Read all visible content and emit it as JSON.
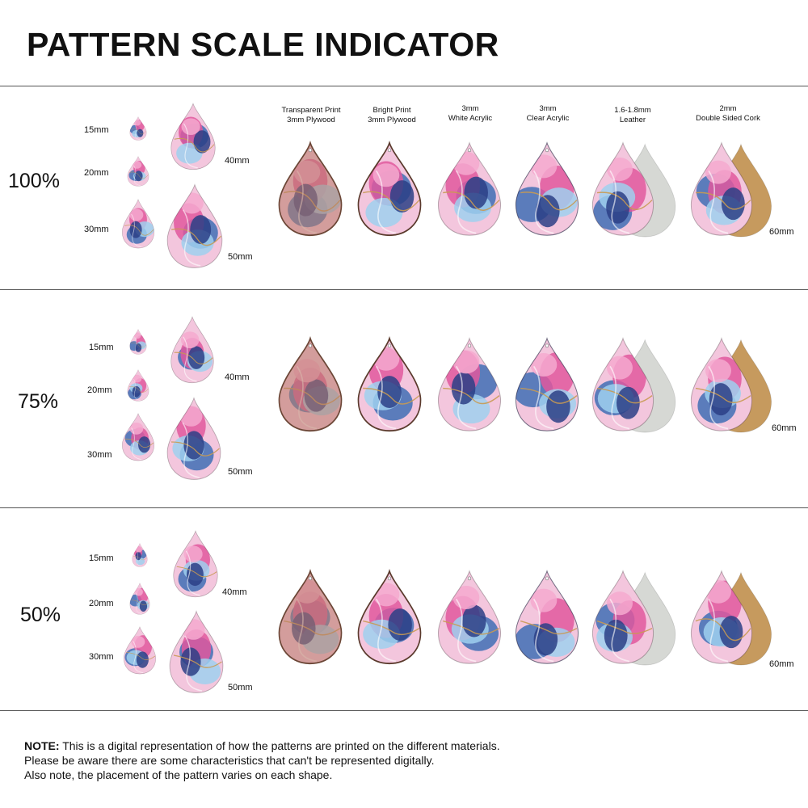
{
  "title": "PATTERN SCALE INDICATOR",
  "columns": [
    {
      "line1": "Transparent Print",
      "line2": "3mm Plywood"
    },
    {
      "line1": "Bright Print",
      "line2": "3mm Plywood"
    },
    {
      "line1": "3mm",
      "line2": "White Acrylic"
    },
    {
      "line1": "3mm",
      "line2": "Clear Acrylic"
    },
    {
      "line1": "1.6-1.8mm",
      "line2": "Leather"
    },
    {
      "line1": "2mm",
      "line2": "Double Sided Cork"
    }
  ],
  "sections": [
    {
      "scale": "100%",
      "sizes": [
        "15mm",
        "20mm",
        "30mm",
        "40mm",
        "50mm"
      ],
      "large_size": "60mm"
    },
    {
      "scale": "75%",
      "sizes": [
        "15mm",
        "20mm",
        "30mm",
        "40mm",
        "50mm"
      ],
      "large_size": "60mm"
    },
    {
      "scale": "50%",
      "sizes": [
        "15mm",
        "20mm",
        "30mm",
        "40mm",
        "50mm"
      ],
      "large_size": "60mm"
    }
  ],
  "note": {
    "label": "NOTE:",
    "line1": "This is a digital representation of how the patterns are printed on the different materials.",
    "line2": "Please be aware there are some characteristics that can't be represented digitally.",
    "line3": "Also note, the placement of the pattern varies on each shape."
  },
  "colors": {
    "pink": "#e0589e",
    "blue": "#3f6fb5",
    "light_blue": "#9fd0ee",
    "navy": "#2c3f86",
    "gold": "#c89a52",
    "leather": "#d6d8d4",
    "cork": "#c69a5e",
    "plywood_tint": "#b87c66"
  }
}
